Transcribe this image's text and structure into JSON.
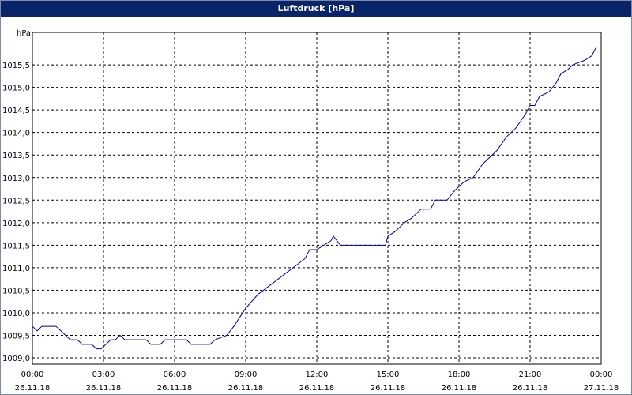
{
  "chart_data": {
    "type": "line",
    "title": "Luftdruck [hPa]",
    "y_label": "hPa",
    "x": [
      0,
      0.2,
      0.4,
      1.0,
      1.2,
      1.4,
      1.6,
      1.9,
      2.1,
      2.5,
      2.7,
      2.9,
      3.1,
      3.3,
      3.5,
      3.7,
      3.9,
      4.8,
      5.0,
      5.4,
      5.6,
      6.5,
      6.7,
      7.5,
      7.7,
      8.2,
      8.5,
      9.0,
      9.5,
      10.0,
      10.5,
      11.0,
      11.5,
      11.7,
      12.0,
      12.3,
      12.6,
      12.7,
      13.0,
      14.9,
      15.0,
      15.3,
      15.7,
      16.0,
      16.4,
      16.8,
      17.0,
      17.5,
      17.8,
      18.2,
      18.6,
      19.0,
      19.6,
      20.0,
      20.4,
      20.8,
      21.0,
      21.2,
      21.4,
      21.8,
      22.1,
      22.3,
      22.6,
      22.8,
      23.3,
      23.6,
      23.8
    ],
    "series": [
      {
        "name": "Luftdruck",
        "color": "#0000a0",
        "values": [
          1009.7,
          1009.6,
          1009.7,
          1009.7,
          1009.6,
          1009.5,
          1009.4,
          1009.4,
          1009.3,
          1009.3,
          1009.2,
          1009.2,
          1009.3,
          1009.4,
          1009.4,
          1009.5,
          1009.4,
          1009.4,
          1009.3,
          1009.3,
          1009.4,
          1009.4,
          1009.3,
          1009.3,
          1009.4,
          1009.5,
          1009.7,
          1010.1,
          1010.4,
          1010.6,
          1010.8,
          1011.0,
          1011.2,
          1011.4,
          1011.4,
          1011.5,
          1011.6,
          1011.7,
          1011.5,
          1011.5,
          1011.7,
          1011.8,
          1012.0,
          1012.1,
          1012.3,
          1012.3,
          1012.5,
          1012.5,
          1012.7,
          1012.9,
          1013.0,
          1013.3,
          1013.6,
          1013.9,
          1014.1,
          1014.4,
          1014.6,
          1014.6,
          1014.8,
          1014.9,
          1015.1,
          1015.3,
          1015.4,
          1015.5,
          1015.6,
          1015.7,
          1015.9
        ]
      }
    ],
    "xlim": [
      0,
      24
    ],
    "xticks": [
      {
        "value": 0,
        "label": [
          "00:00",
          "26.11.18"
        ]
      },
      {
        "value": 3,
        "label": [
          "03:00",
          "26.11.18"
        ]
      },
      {
        "value": 6,
        "label": [
          "06:00",
          "26.11.18"
        ]
      },
      {
        "value": 9,
        "label": [
          "09:00",
          "26.11.18"
        ]
      },
      {
        "value": 12,
        "label": [
          "12:00",
          "26.11.18"
        ]
      },
      {
        "value": 15,
        "label": [
          "15:00",
          "26.11.18"
        ]
      },
      {
        "value": 18,
        "label": [
          "18:00",
          "26.11.18"
        ]
      },
      {
        "value": 21,
        "label": [
          "21:00",
          "26.11.18"
        ]
      },
      {
        "value": 24,
        "label": [
          "00:00",
          "27.11.18"
        ]
      }
    ],
    "ylim": [
      1008.86,
      1016.22
    ],
    "yticks": [
      {
        "value": 1009.0,
        "label": "1009,0"
      },
      {
        "value": 1009.5,
        "label": "1009,5"
      },
      {
        "value": 1010.0,
        "label": "1010,0"
      },
      {
        "value": 1010.5,
        "label": "1010,5"
      },
      {
        "value": 1011.0,
        "label": "1011,0"
      },
      {
        "value": 1011.5,
        "label": "1011,5"
      },
      {
        "value": 1012.0,
        "label": "1012,0"
      },
      {
        "value": 1012.5,
        "label": "1012,5"
      },
      {
        "value": 1013.0,
        "label": "1013,0"
      },
      {
        "value": 1013.5,
        "label": "1013,5"
      },
      {
        "value": 1014.0,
        "label": "1014,0"
      },
      {
        "value": 1014.5,
        "label": "1014,5"
      },
      {
        "value": 1015.0,
        "label": "1015,0"
      },
      {
        "value": 1015.5,
        "label": "1015,5"
      }
    ],
    "grid": true
  }
}
